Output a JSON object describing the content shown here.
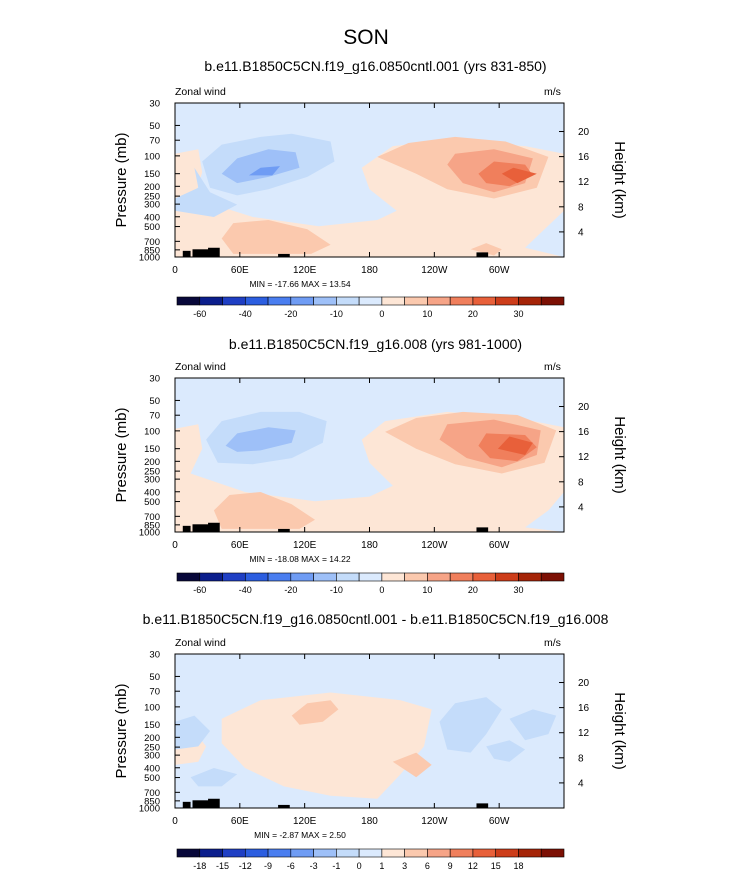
{
  "figure": {
    "title": "SON"
  },
  "chart_data": [
    {
      "type": "contour",
      "title": "b.e11.B1850C5CN.f19_g16.0850cntl.001 (yrs 831-850)",
      "left_label": "Zonal wind",
      "right_label": "m/s",
      "ylabel": "Pressure (mb)",
      "ylabel_right": "Height (km)",
      "x_ticks": [
        "0",
        "60E",
        "120E",
        "180",
        "120W",
        "60W"
      ],
      "x_tick_lon": [
        0,
        60,
        120,
        180,
        240,
        300
      ],
      "xlim": [
        0,
        360
      ],
      "p_ticks": [
        "30",
        "50",
        "70",
        "100",
        "150",
        "200",
        "250",
        "300",
        "400",
        "500",
        "700",
        "850",
        "1000"
      ],
      "p_vals": [
        30,
        50,
        70,
        100,
        150,
        200,
        250,
        300,
        400,
        500,
        700,
        850,
        1000
      ],
      "ylim_mb": [
        30,
        1000
      ],
      "h_ticks": [
        "4",
        "8",
        "12",
        "16",
        "20"
      ],
      "h_vals": [
        4,
        8,
        12,
        16,
        20
      ],
      "stats": "MIN = -17.66  MAX = 13.54",
      "min": -17.66,
      "max": 13.54,
      "colorbar": {
        "levels": [
          -70,
          -60,
          -50,
          -40,
          -30,
          -20,
          -15,
          -10,
          -5,
          0,
          5,
          10,
          15,
          20,
          25,
          30,
          35
        ],
        "labels": [
          "-60",
          "-40",
          "-20",
          "-10",
          "0",
          "10",
          "20",
          "30"
        ],
        "label_index": [
          1,
          3,
          5,
          7,
          9,
          11,
          13,
          15
        ],
        "colors": [
          "#08083a",
          "#0b1e8c",
          "#1f3fc4",
          "#2c5ee0",
          "#4a7ef0",
          "#6f9cf4",
          "#9ec0f8",
          "#c4dcfa",
          "#dbeafd",
          "#fde6d6",
          "#fbc9ae",
          "#f6a487",
          "#f07f5c",
          "#e8603a",
          "#cd3d1a",
          "#a52408",
          "#7c1004"
        ]
      }
    },
    {
      "type": "contour",
      "title": "b.e11.B1850C5CN.f19_g16.008 (yrs 981-1000)",
      "left_label": "Zonal wind",
      "right_label": "m/s",
      "ylabel": "Pressure (mb)",
      "ylabel_right": "Height (km)",
      "x_ticks": [
        "0",
        "60E",
        "120E",
        "180",
        "120W",
        "60W"
      ],
      "x_tick_lon": [
        0,
        60,
        120,
        180,
        240,
        300
      ],
      "xlim": [
        0,
        360
      ],
      "p_ticks": [
        "30",
        "50",
        "70",
        "100",
        "150",
        "200",
        "250",
        "300",
        "400",
        "500",
        "700",
        "850",
        "1000"
      ],
      "p_vals": [
        30,
        50,
        70,
        100,
        150,
        200,
        250,
        300,
        400,
        500,
        700,
        850,
        1000
      ],
      "ylim_mb": [
        30,
        1000
      ],
      "h_ticks": [
        "4",
        "8",
        "12",
        "16",
        "20"
      ],
      "h_vals": [
        4,
        8,
        12,
        16,
        20
      ],
      "stats": "MIN = -18.08  MAX = 14.22",
      "min": -18.08,
      "max": 14.22,
      "colorbar": {
        "levels": [
          -70,
          -60,
          -50,
          -40,
          -30,
          -20,
          -15,
          -10,
          -5,
          0,
          5,
          10,
          15,
          20,
          25,
          30,
          35
        ],
        "labels": [
          "-60",
          "-40",
          "-20",
          "-10",
          "0",
          "10",
          "20",
          "30"
        ],
        "label_index": [
          1,
          3,
          5,
          7,
          9,
          11,
          13,
          15
        ],
        "colors": [
          "#08083a",
          "#0b1e8c",
          "#1f3fc4",
          "#2c5ee0",
          "#4a7ef0",
          "#6f9cf4",
          "#9ec0f8",
          "#c4dcfa",
          "#dbeafd",
          "#fde6d6",
          "#fbc9ae",
          "#f6a487",
          "#f07f5c",
          "#e8603a",
          "#cd3d1a",
          "#a52408",
          "#7c1004"
        ]
      }
    },
    {
      "type": "contour",
      "title": "b.e11.B1850C5CN.f19_g16.0850cntl.001 - b.e11.B1850C5CN.f19_g16.008",
      "left_label": "Zonal wind",
      "right_label": "m/s",
      "ylabel": "Pressure (mb)",
      "ylabel_right": "Height (km)",
      "x_ticks": [
        "0",
        "60E",
        "120E",
        "180",
        "120W",
        "60W"
      ],
      "x_tick_lon": [
        0,
        60,
        120,
        180,
        240,
        300
      ],
      "xlim": [
        0,
        360
      ],
      "p_ticks": [
        "30",
        "50",
        "70",
        "100",
        "150",
        "200",
        "250",
        "300",
        "400",
        "500",
        "700",
        "850",
        "1000"
      ],
      "p_vals": [
        30,
        50,
        70,
        100,
        150,
        200,
        250,
        300,
        400,
        500,
        700,
        850,
        1000
      ],
      "ylim_mb": [
        30,
        1000
      ],
      "h_ticks": [
        "4",
        "8",
        "12",
        "16",
        "20"
      ],
      "h_vals": [
        4,
        8,
        12,
        16,
        20
      ],
      "stats": "MIN = -2.87  MAX = 2.50",
      "min": -2.87,
      "max": 2.5,
      "colorbar": {
        "levels": [
          -21,
          -18,
          -15,
          -12,
          -9,
          -6,
          -3,
          -1,
          0,
          1,
          3,
          6,
          9,
          12,
          15,
          18,
          21
        ],
        "labels": [
          "-18",
          "-15",
          "-12",
          "-9",
          "-6",
          "-3",
          "-1",
          "0",
          "1",
          "3",
          "6",
          "9",
          "12",
          "15",
          "18"
        ],
        "label_index": [
          1,
          2,
          3,
          4,
          5,
          6,
          7,
          8,
          9,
          10,
          11,
          12,
          13,
          14,
          15
        ],
        "colors": [
          "#08083a",
          "#0b1e8c",
          "#1f3fc4",
          "#2c5ee0",
          "#4a7ef0",
          "#6f9cf4",
          "#9ec0f8",
          "#c4dcfa",
          "#dbeafd",
          "#fde6d6",
          "#fbc9ae",
          "#f6a487",
          "#f07f5c",
          "#e8603a",
          "#cd3d1a",
          "#a52408",
          "#7c1004"
        ]
      }
    }
  ]
}
